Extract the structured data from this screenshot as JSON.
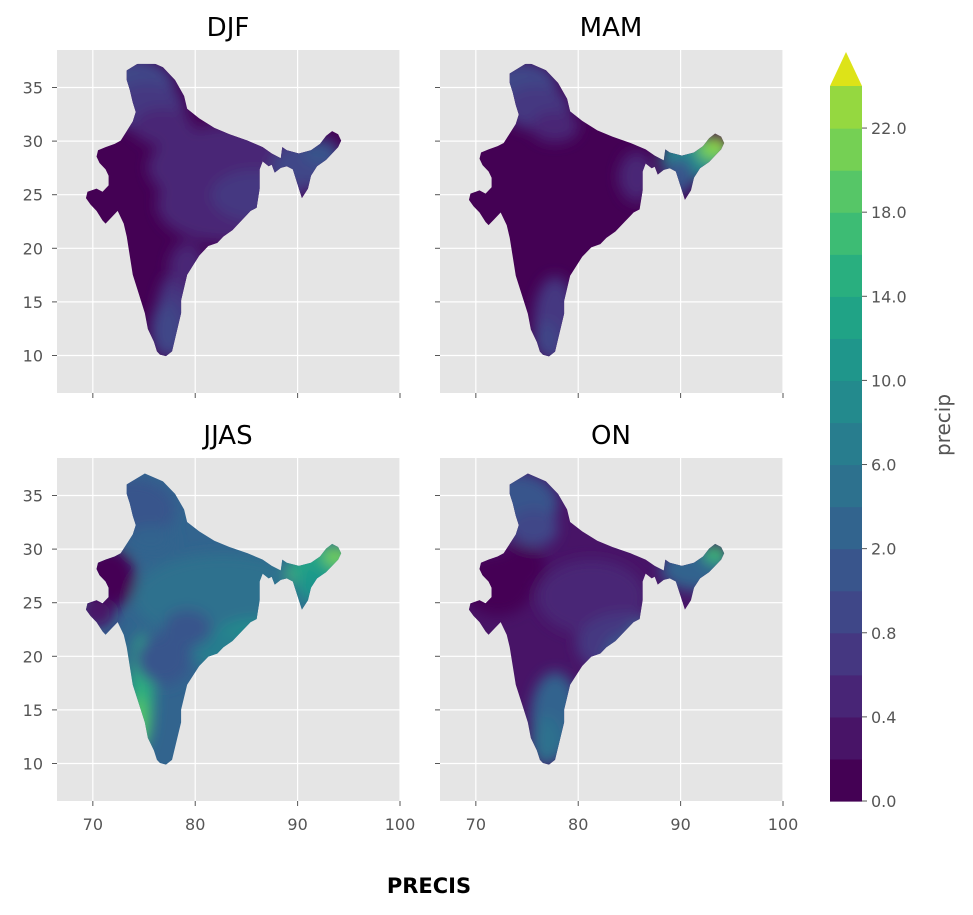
{
  "figure": {
    "suptitle": "PRECIS"
  },
  "chart_data": [
    {
      "type": "heatmap",
      "title": "DJF",
      "region": "India",
      "xlim": [
        66.5,
        100
      ],
      "ylim": [
        6.5,
        38.5
      ],
      "xticks": [
        "70",
        "80",
        "90",
        "100"
      ],
      "yticks": [
        "10",
        "15",
        "20",
        "25",
        "30",
        "35"
      ],
      "grid": true,
      "colormap": "viridis",
      "variable": "precip"
    },
    {
      "type": "heatmap",
      "title": "MAM",
      "region": "India",
      "xlim": [
        66.5,
        100
      ],
      "ylim": [
        6.5,
        38.5
      ],
      "xticks": [
        "70",
        "80",
        "90",
        "100"
      ],
      "yticks": [
        "10",
        "15",
        "20",
        "25",
        "30",
        "35"
      ],
      "grid": true,
      "colormap": "viridis",
      "variable": "precip"
    },
    {
      "type": "heatmap",
      "title": "JJAS",
      "region": "India",
      "xlim": [
        66.5,
        100
      ],
      "ylim": [
        6.5,
        38.5
      ],
      "xticks": [
        "70",
        "80",
        "90",
        "100"
      ],
      "yticks": [
        "10",
        "15",
        "20",
        "25",
        "30",
        "35"
      ],
      "grid": true,
      "colormap": "viridis",
      "variable": "precip"
    },
    {
      "type": "heatmap",
      "title": "ON",
      "region": "India",
      "xlim": [
        66.5,
        100
      ],
      "ylim": [
        6.5,
        38.5
      ],
      "xticks": [
        "70",
        "80",
        "90",
        "100"
      ],
      "yticks": [
        "10",
        "15",
        "20",
        "25",
        "30",
        "35"
      ],
      "grid": true,
      "colormap": "viridis",
      "variable": "precip"
    }
  ],
  "colorbar": {
    "label": "precip",
    "extend": "max",
    "levels": [
      0.0,
      0.2,
      0.4,
      0.6,
      0.8,
      1.0,
      2.0,
      4.0,
      6.0,
      8.0,
      10.0,
      12.0,
      14.0,
      16.0,
      18.0,
      20.0,
      22.0
    ],
    "tick_labels": [
      "0.0",
      "0.4",
      "0.8",
      "2.0",
      "6.0",
      "10.0",
      "14.0",
      "18.0",
      "22.0"
    ],
    "colors": [
      "#440154",
      "#481467",
      "#482576",
      "#453781",
      "#3f4788",
      "#39558c",
      "#32648e",
      "#2d718e",
      "#287d8e",
      "#238a8d",
      "#1f968b",
      "#20a386",
      "#29af7f",
      "#3dbc74",
      "#56c667",
      "#75d054",
      "#95d840"
    ],
    "extend_color": "#dde318"
  },
  "theme": {
    "panel_bg": "#e5e5e5",
    "grid_color": "#ffffff",
    "tick_color": "#555555"
  }
}
